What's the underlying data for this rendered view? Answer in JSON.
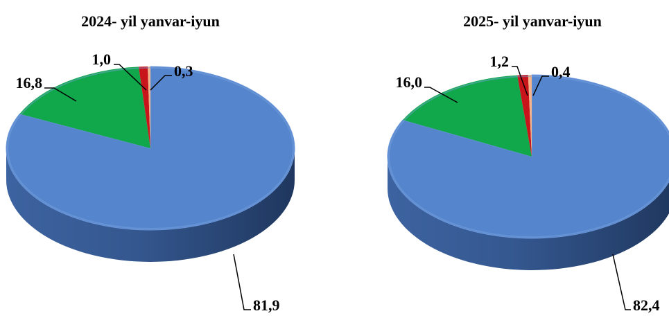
{
  "chart_data": [
    {
      "type": "pie",
      "title": "2024- yil yanvar-iyun",
      "values": [
        81.9,
        16.8,
        1.0,
        0.3
      ],
      "value_labels": [
        "81,9",
        "16,8",
        "1,0",
        "0,3"
      ],
      "colors": [
        "#5585CC",
        "#10A84A",
        "#C8151B",
        "#F2B48C"
      ],
      "style": "3d",
      "legend": "none"
    },
    {
      "type": "pie",
      "title": "2025- yil yanvar-iyun",
      "values": [
        82.4,
        16.0,
        1.2,
        0.4
      ],
      "value_labels": [
        "82,4",
        "16,0",
        "1,2",
        "0,4"
      ],
      "colors": [
        "#5585CC",
        "#10A84A",
        "#C8151B",
        "#F2B48C"
      ],
      "style": "3d",
      "legend": "none"
    }
  ]
}
